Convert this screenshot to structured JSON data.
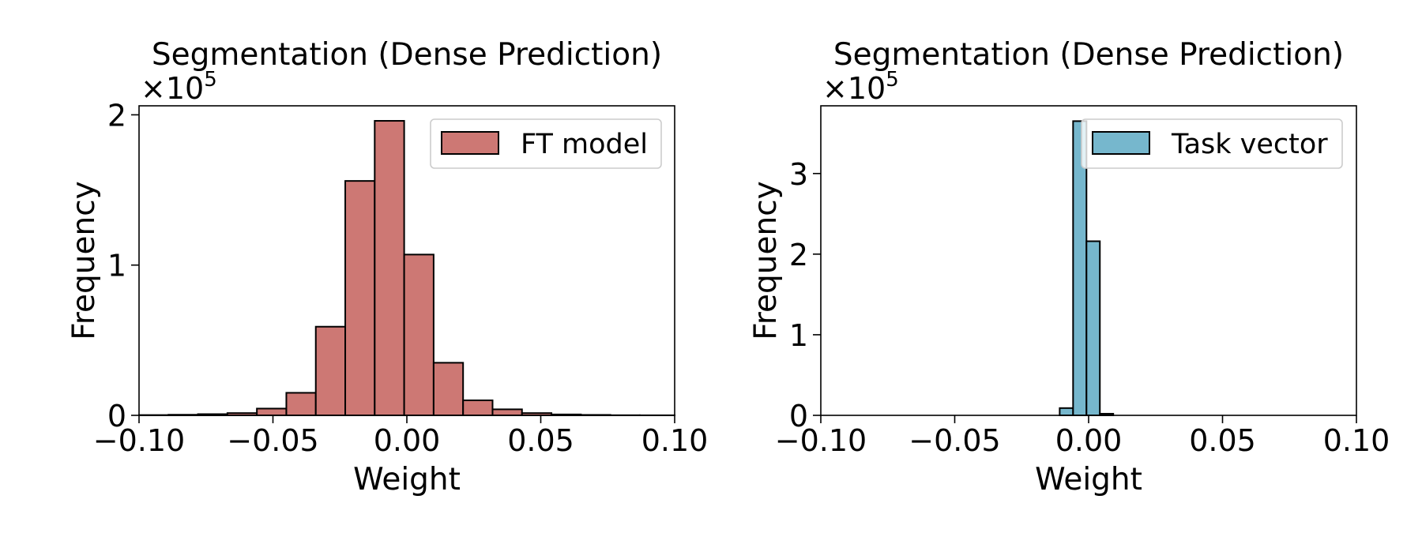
{
  "chart_data": [
    {
      "type": "bar",
      "title": "Segmentation (Dense Prediction)",
      "xlabel": "Weight",
      "ylabel": "Frequency",
      "y_multiplier_label": "×10",
      "y_multiplier_exp": "5",
      "xlim": [
        -0.1,
        0.1
      ],
      "ylim": [
        0,
        2.06
      ],
      "xticks": [
        -0.1,
        -0.05,
        0,
        0.05,
        0.1
      ],
      "xtick_labels": [
        "−0.10",
        "−0.05",
        "0.00",
        "0.05",
        "0.10"
      ],
      "yticks": [
        0,
        1,
        2
      ],
      "ytick_labels": [
        "0",
        "1",
        "2"
      ],
      "legend": {
        "label": "FT model",
        "placement": "upper right"
      },
      "color": "#cd7874",
      "bin_edges": [
        -0.1,
        -0.089,
        -0.078,
        -0.067,
        -0.056,
        -0.045,
        -0.034,
        -0.023,
        -0.012,
        -0.001,
        0.01,
        0.021,
        0.032,
        0.043,
        0.054,
        0.065,
        0.076,
        0.087,
        0.1
      ],
      "values": [
        0.002,
        0.004,
        0.008,
        0.015,
        0.045,
        0.15,
        0.59,
        1.56,
        1.96,
        1.07,
        0.35,
        0.1,
        0.04,
        0.015,
        0.006,
        0.003,
        0.001,
        0.0005
      ]
    },
    {
      "type": "bar",
      "title": "Segmentation (Dense Prediction)",
      "xlabel": "Weight",
      "ylabel": "Frequency",
      "y_multiplier_label": "×10",
      "y_multiplier_exp": "5",
      "xlim": [
        -0.1,
        0.1
      ],
      "ylim": [
        0,
        3.84
      ],
      "xticks": [
        -0.1,
        -0.05,
        0,
        0.05,
        0.1
      ],
      "xtick_labels": [
        "−0.10",
        "−0.05",
        "0.00",
        "0.05",
        "0.10"
      ],
      "yticks": [
        0,
        1,
        2,
        3
      ],
      "ytick_labels": [
        "0",
        "1",
        "2",
        "3"
      ],
      "legend": {
        "label": "Task vector",
        "placement": "upper right"
      },
      "color": "#76b7cd",
      "bin_edges": [
        -0.0108,
        -0.0058,
        -0.0008,
        0.0042,
        0.0092
      ],
      "values": [
        0.09,
        3.65,
        2.16,
        0.02
      ]
    }
  ]
}
